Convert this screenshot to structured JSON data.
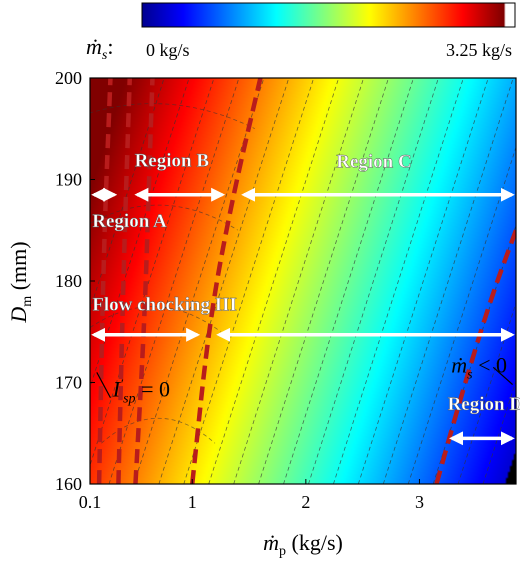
{
  "chart_data": {
    "type": "heatmap",
    "title": "",
    "xlabel": {
      "symbol": "ṁ",
      "sub": "p",
      "unit": " (kg/s)"
    },
    "ylabel": {
      "symbol": "D",
      "sub": "m",
      "unit": " (mm)"
    },
    "xlim": [
      0.1,
      3.85
    ],
    "ylim": [
      160,
      200
    ],
    "xticks": [
      {
        "value": 0.1,
        "label": "0.1"
      },
      {
        "value": 1,
        "label": "1"
      },
      {
        "value": 2,
        "label": "2"
      },
      {
        "value": 3,
        "label": "3"
      }
    ],
    "yticks": [
      {
        "value": 160,
        "label": "160"
      },
      {
        "value": 170,
        "label": "170"
      },
      {
        "value": 180,
        "label": "180"
      },
      {
        "value": 190,
        "label": "190"
      },
      {
        "value": 200,
        "label": "200"
      }
    ],
    "colorbar": {
      "variable": {
        "symbol": "ṁ",
        "sub": "s",
        "suffix": ":"
      },
      "min_label": "0 kg/s",
      "max_label": "3.25 kg/s",
      "min": 0,
      "max": 3.25,
      "colormap": "jet"
    },
    "field_model": "ṁs increases toward upper-left, decreases toward lower-right",
    "boundaries": [
      {
        "points": [
          [
            0.35,
            160
          ],
          [
            0.4,
            183
          ],
          [
            0.45,
            200
          ]
        ],
        "color": "#b81c1c"
      },
      {
        "points": [
          [
            0.18,
            160
          ],
          [
            0.22,
            183
          ],
          [
            0.28,
            200
          ]
        ],
        "color": "#b81c1c"
      },
      {
        "points": [
          [
            1.0,
            160
          ],
          [
            1.15,
            176
          ],
          [
            1.35,
            188
          ],
          [
            1.6,
            200
          ]
        ],
        "color": "#b81c1c"
      },
      {
        "points": [
          [
            0.5,
            160
          ],
          [
            0.58,
            176
          ],
          [
            0.62,
            190
          ],
          [
            0.65,
            200
          ]
        ],
        "color": "#b81c1c"
      },
      {
        "points": [
          [
            3.15,
            160
          ],
          [
            3.35,
            168
          ],
          [
            3.62,
            178
          ],
          [
            3.85,
            185
          ]
        ],
        "color": "#b81c1c"
      }
    ],
    "arrows": [
      {
        "label": "Region A",
        "y": 188.5,
        "x": [
          0.1,
          0.35
        ],
        "label_pos": [
          0.12,
          185.3
        ]
      },
      {
        "label": "Region B",
        "y": 188.5,
        "x": [
          0.48,
          1.3
        ],
        "label_pos": [
          0.82,
          191.3
        ]
      },
      {
        "label": "Region C",
        "y": 188.5,
        "x": [
          1.42,
          3.85
        ],
        "label_pos": [
          2.6,
          191.2
        ]
      },
      {
        "label": "Flow chocking III",
        "y": 174.7,
        "x": [
          0.1,
          1.08
        ],
        "label_pos": [
          0.12,
          177.1
        ]
      },
      {
        "label": "",
        "y": 174.7,
        "x": [
          1.2,
          3.85
        ]
      },
      {
        "label": "Region D",
        "y": 164.5,
        "x": [
          3.25,
          3.85
        ],
        "label_pos": [
          3.58,
          167.3
        ]
      }
    ],
    "annotations": [
      {
        "text_main": "I",
        "text_prime": "′",
        "text_sub": "sp",
        "text_rest": " = 0",
        "pos": [
          0.3,
          168.6
        ]
      },
      {
        "text_main": "ṁ",
        "text_sub": "s",
        "text_rest": " < 0",
        "pos": [
          3.28,
          171.0
        ]
      }
    ],
    "grid": false
  }
}
